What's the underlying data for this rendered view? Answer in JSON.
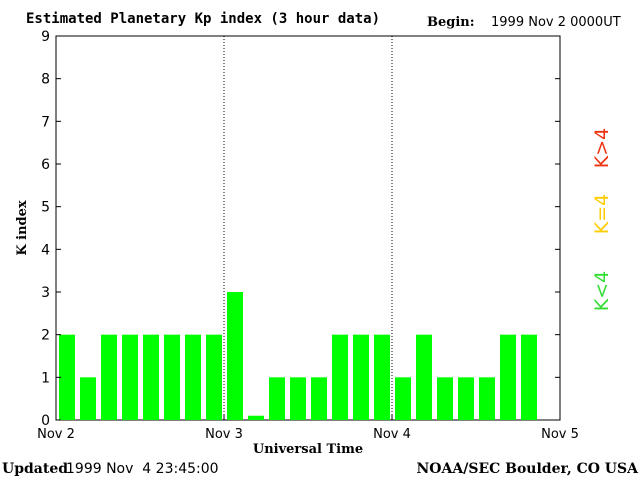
{
  "chart_data": {
    "type": "bar",
    "title": "Estimated Planetary Kp index (3 hour data)",
    "begin_label": "Begin:",
    "begin_value": "1999 Nov 2 0000UT",
    "xlabel": "Universal Time",
    "ylabel": "K index",
    "ylim": [
      0,
      9
    ],
    "y_ticks": [
      "0",
      "1",
      "2",
      "3",
      "4",
      "5",
      "6",
      "7",
      "8",
      "9"
    ],
    "x_ticks": [
      "Nov 2",
      "Nov 3",
      "Nov 4",
      "Nov 5"
    ],
    "day_separators": [
      "Nov 3",
      "Nov 4"
    ],
    "categories": [
      "Nov 2 00",
      "Nov 2 03",
      "Nov 2 06",
      "Nov 2 09",
      "Nov 2 12",
      "Nov 2 15",
      "Nov 2 18",
      "Nov 2 21",
      "Nov 3 00",
      "Nov 3 03",
      "Nov 3 06",
      "Nov 3 09",
      "Nov 3 12",
      "Nov 3 15",
      "Nov 3 18",
      "Nov 3 21",
      "Nov 4 00",
      "Nov 4 03",
      "Nov 4 06",
      "Nov 4 09",
      "Nov 4 12",
      "Nov 4 15",
      "Nov 4 18"
    ],
    "values": [
      2,
      1,
      2,
      2,
      2,
      2,
      2,
      2,
      3,
      0.1,
      1,
      1,
      1,
      2,
      2,
      2,
      1,
      2,
      1,
      1,
      1,
      2,
      2
    ],
    "bar_color": "#00ff00",
    "legend": [
      {
        "label": "K<4",
        "color": "#33dd33"
      },
      {
        "label": "K=4",
        "color": "#ffcc00"
      },
      {
        "label": "K>4",
        "color": "#ee3311"
      }
    ],
    "grid": false
  },
  "footer": {
    "updated_label": "Updated",
    "updated_value": "1999 Nov  4 23:45:00",
    "credit": "NOAA/SEC Boulder, CO USA"
  }
}
